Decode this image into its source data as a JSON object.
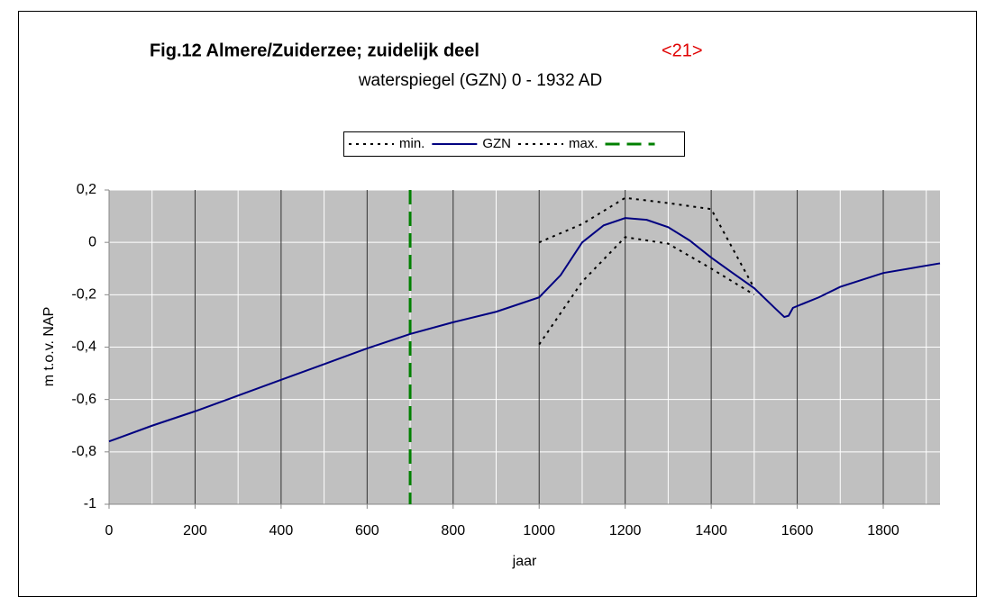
{
  "chart_data": {
    "type": "line",
    "title": "Fig.12  Almere/Zuiderzee; zuidelijk deel",
    "title_tag": "<21>",
    "subtitle": "waterspiegel (GZN) 0 - 1932 AD",
    "x_label": "jaar",
    "y_label": "m t.o.v. NAP",
    "xlim": [
      0,
      1932
    ],
    "xticks": [
      0,
      200,
      400,
      600,
      800,
      1000,
      1200,
      1400,
      1600,
      1800
    ],
    "xminorticks": [
      100,
      300,
      500,
      700,
      900,
      1100,
      1300,
      1500,
      1700,
      1900
    ],
    "ylim": [
      -1,
      0.2
    ],
    "yticks": [
      {
        "value": 0.2,
        "label": "0,2"
      },
      0,
      {
        "value": -0.2,
        "label": "-0,2"
      },
      {
        "value": -0.4,
        "label": "-0,4"
      },
      {
        "value": -0.6,
        "label": "-0,6"
      },
      {
        "value": -0.8,
        "label": "-0,8"
      },
      -1
    ],
    "grid": true,
    "plot_background": "#c0c0c0",
    "series": [
      {
        "name": "min.",
        "color": "#000000",
        "dash": "dotted",
        "x": [
          1000,
          1100,
          1200,
          1300,
          1400,
          1500
        ],
        "values": [
          -0.39,
          -0.15,
          0.02,
          -0.005,
          -0.1,
          -0.2
        ]
      },
      {
        "name": "GZN",
        "color": "#000080",
        "dash": "solid",
        "x": [
          0,
          100,
          200,
          300,
          400,
          500,
          600,
          700,
          800,
          900,
          1000,
          1050,
          1100,
          1150,
          1200,
          1250,
          1300,
          1350,
          1400,
          1450,
          1500,
          1550,
          1570,
          1580,
          1590,
          1650,
          1700,
          1800,
          1932
        ],
        "values": [
          -0.76,
          -0.7,
          -0.645,
          -0.585,
          -0.525,
          -0.465,
          -0.405,
          -0.35,
          -0.305,
          -0.265,
          -0.21,
          -0.125,
          0,
          0.065,
          0.093,
          0.086,
          0.058,
          0.007,
          -0.058,
          -0.117,
          -0.175,
          -0.254,
          -0.285,
          -0.28,
          -0.25,
          -0.21,
          -0.17,
          -0.117,
          -0.08
        ]
      },
      {
        "name": "max.",
        "color": "#000000",
        "dash": "dotted",
        "x": [
          1000,
          1100,
          1200,
          1300,
          1400,
          1500
        ],
        "values": [
          0,
          0.07,
          0.17,
          0.15,
          0.127,
          -0.175
        ]
      }
    ],
    "vlines": [
      {
        "x": 700,
        "color": "#008000"
      }
    ]
  }
}
